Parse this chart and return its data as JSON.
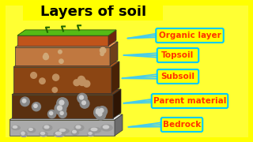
{
  "title": "Layers of soil",
  "title_fontsize": 13,
  "title_color": "#000000",
  "background_color": "#ffff33",
  "border_color": "#ffff00",
  "layers_top_to_bottom": [
    {
      "label": "Organic layer",
      "front_color": "#c0541a",
      "top_color": "#5aaa10",
      "side_color": "#8a3010"
    },
    {
      "label": "Topsoil",
      "front_color": "#c07840",
      "top_color": "#c07840",
      "side_color": "#8a5020"
    },
    {
      "label": "Subsoil",
      "front_color": "#8b4513",
      "top_color": "#8b4513",
      "side_color": "#5c2a08"
    },
    {
      "label": "Parent material",
      "front_color": "#5a3010",
      "top_color": "#5a3010",
      "side_color": "#3a1a05"
    },
    {
      "label": "Bedrock",
      "front_color": "#aaaaaa",
      "top_color": "#bbbbbb",
      "side_color": "#888888"
    }
  ],
  "label_bg": "#ffff00",
  "label_border_color": "#00ccff",
  "label_text_color": "#ff3300",
  "label_fontsize": 7.5,
  "arrow_color": "#44ccee"
}
